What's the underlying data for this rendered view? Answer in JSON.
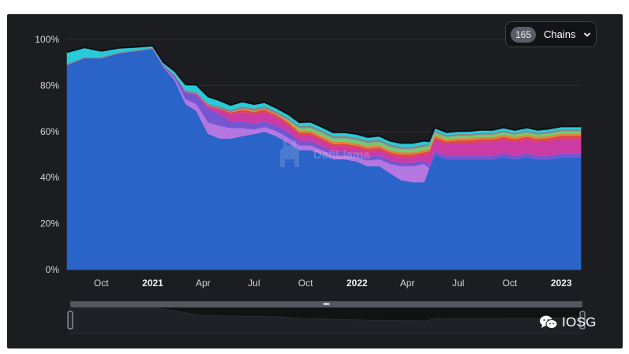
{
  "chains_selector": {
    "count": "165",
    "label": "Chains",
    "icon": "chevron-down-icon"
  },
  "watermark": {
    "text": "DefiLlama",
    "icon": "llama-logo-icon"
  },
  "source_badge": {
    "text": "IOSG",
    "icon": "wechat-icon"
  },
  "colors": {
    "panel_bg": "#1c1d21",
    "ethereum": "#2b64c8",
    "top_edge": "#0e0f11",
    "brush_handle": "#54575e"
  },
  "chart_data": {
    "type": "area",
    "stacked": true,
    "percent": true,
    "title": "",
    "xlabel": "",
    "ylabel": "",
    "ylim": [
      0,
      100
    ],
    "y_ticks": [
      "0%",
      "20%",
      "40%",
      "60%",
      "80%",
      "100%"
    ],
    "x_ticks": [
      {
        "label": "Oct",
        "date": "2020-10-01",
        "bold": false
      },
      {
        "label": "2021",
        "date": "2021-01-01",
        "bold": true
      },
      {
        "label": "Apr",
        "date": "2021-04-01",
        "bold": false
      },
      {
        "label": "Jul",
        "date": "2021-07-01",
        "bold": false
      },
      {
        "label": "Oct",
        "date": "2021-10-01",
        "bold": false
      },
      {
        "label": "2022",
        "date": "2022-01-01",
        "bold": true
      },
      {
        "label": "Apr",
        "date": "2022-04-01",
        "bold": false
      },
      {
        "label": "Jul",
        "date": "2022-07-01",
        "bold": false
      },
      {
        "label": "Oct",
        "date": "2022-10-01",
        "bold": false
      },
      {
        "label": "2023",
        "date": "2023-01-01",
        "bold": true
      }
    ],
    "x_range": [
      "2020-08-01",
      "2023-02-05"
    ],
    "grid": true,
    "legend": "none",
    "x": [
      "2020-08-01",
      "2020-09-01",
      "2020-10-01",
      "2020-11-01",
      "2020-12-01",
      "2021-01-01",
      "2021-01-20",
      "2021-02-10",
      "2021-03-01",
      "2021-03-20",
      "2021-04-10",
      "2021-05-01",
      "2021-05-20",
      "2021-06-10",
      "2021-07-01",
      "2021-07-20",
      "2021-08-10",
      "2021-09-01",
      "2021-09-20",
      "2021-10-10",
      "2021-11-01",
      "2021-11-20",
      "2021-12-10",
      "2022-01-01",
      "2022-01-20",
      "2022-02-10",
      "2022-03-01",
      "2022-03-20",
      "2022-04-10",
      "2022-05-01",
      "2022-05-10",
      "2022-05-20",
      "2022-06-10",
      "2022-07-01",
      "2022-07-20",
      "2022-08-10",
      "2022-09-01",
      "2022-09-20",
      "2022-10-10",
      "2022-11-01",
      "2022-11-20",
      "2022-12-10",
      "2023-01-01",
      "2023-01-20",
      "2023-02-05"
    ],
    "series": [
      {
        "color": "#2b64c8",
        "values": [
          89,
          92,
          92,
          94,
          95,
          96,
          88,
          82,
          72,
          69,
          59,
          57,
          57,
          58,
          59,
          60,
          58,
          55,
          52,
          52,
          50,
          48,
          48,
          47,
          45,
          45,
          42,
          39,
          38,
          38,
          44,
          50,
          48,
          48,
          48,
          48,
          48,
          49,
          48,
          49,
          48,
          48,
          49,
          49,
          49
        ]
      },
      {
        "color": "#c07ff0",
        "values": [
          0,
          0,
          0,
          0,
          0,
          0,
          0.3,
          1,
          2,
          3,
          5,
          5.5,
          4.5,
          3.5,
          2,
          2,
          2.2,
          2.2,
          2,
          2,
          1.8,
          1.5,
          1.6,
          1.8,
          2.5,
          3,
          4,
          6,
          7,
          8,
          0,
          0,
          0,
          0,
          0,
          0,
          0,
          0,
          0,
          0,
          0,
          0,
          0,
          0,
          0
        ]
      },
      {
        "color": "#7c5be0",
        "values": [
          0,
          0,
          0,
          0,
          0,
          0,
          0.5,
          1,
          3,
          4,
          6,
          5,
          3,
          3,
          2.5,
          2.5,
          2.5,
          2.5,
          2,
          2,
          1.6,
          1.6,
          1.6,
          1.6,
          1.6,
          1.6,
          1.5,
          1.5,
          1.5,
          1.5,
          1.5,
          1.5,
          1.5,
          1.5,
          1.5,
          1.5,
          1.5,
          1.5,
          1.5,
          1.5,
          1.5,
          1.5,
          1.5,
          1.5,
          1.5
        ]
      },
      {
        "color": "#d93fb0",
        "values": [
          0,
          0,
          0,
          0,
          0,
          0,
          0,
          0,
          0.2,
          0.5,
          1,
          2,
          3,
          4,
          4,
          4,
          3.5,
          3,
          2.5,
          2.5,
          2.5,
          2.5,
          2.5,
          2.5,
          2.5,
          2.5,
          2.5,
          2.5,
          2.5,
          2.5,
          5,
          5,
          5,
          5.5,
          5.5,
          6,
          6,
          6,
          6,
          6,
          6,
          6.5,
          6.5,
          6.5,
          6.5
        ]
      },
      {
        "color": "#e94a55",
        "values": [
          0,
          0,
          0,
          0,
          0,
          0,
          0,
          0,
          0,
          0,
          0.2,
          0.5,
          0.8,
          1,
          1,
          1,
          1,
          1,
          1,
          1,
          1,
          1,
          1,
          1,
          1,
          1,
          1,
          1,
          1,
          1,
          1,
          1,
          1.2,
          1.2,
          1.2,
          1.2,
          1.2,
          1.2,
          1.2,
          1.2,
          1.2,
          1.2,
          1.2,
          1.2,
          1.2
        ]
      },
      {
        "color": "#f08a3c",
        "values": [
          0,
          0,
          0,
          0,
          0,
          0,
          0,
          0,
          0,
          0,
          0,
          0,
          0.2,
          0.5,
          0.6,
          0.6,
          0.6,
          0.8,
          1,
          1,
          1,
          1,
          1,
          1,
          1,
          1,
          1,
          1,
          1,
          1,
          1,
          1,
          1,
          1,
          1,
          1,
          1,
          1,
          1,
          1,
          1,
          1,
          1,
          1,
          1
        ]
      },
      {
        "color": "#7ad67c",
        "values": [
          0,
          0,
          0,
          0,
          0,
          0,
          0,
          0,
          0,
          0,
          0,
          0,
          0,
          0,
          0,
          0,
          0,
          0.4,
          1,
          1.2,
          1.4,
          1.5,
          1.5,
          1.5,
          1.5,
          1.5,
          1.5,
          1.5,
          1.5,
          1.5,
          1.2,
          1.2,
          1,
          1,
          1,
          1,
          1,
          1,
          1,
          1,
          1,
          1,
          1,
          1,
          1
        ]
      },
      {
        "color": "#8a8f96",
        "values": [
          0.5,
          0.5,
          0.5,
          0.5,
          0.5,
          0.5,
          0.5,
          0.6,
          0.7,
          0.8,
          1,
          1,
          1,
          1,
          1,
          1,
          1,
          1,
          1,
          1,
          1,
          1,
          1,
          1,
          1,
          1,
          1,
          1,
          1,
          1,
          0.8,
          0.8,
          0.8,
          0.8,
          0.8,
          0.8,
          0.8,
          0.8,
          0.8,
          0.8,
          0.8,
          0.8,
          0.8,
          0.8,
          0.8
        ]
      },
      {
        "color": "#27d9e8",
        "values": [
          5,
          4,
          2.5,
          1.8,
          1.2,
          0.8,
          0.8,
          1.5,
          2.5,
          3,
          3,
          2.5,
          2,
          2,
          1.8,
          1.6,
          1.5,
          1.5,
          1.5,
          1.5,
          1.5,
          1.5,
          1.5,
          1.5,
          1.5,
          1.5,
          1.5,
          1.5,
          1.5,
          1.5,
          1.2,
          1.2,
          1.2,
          1.2,
          1.2,
          1.2,
          1.2,
          1.2,
          1.2,
          1.2,
          1.2,
          1.2,
          1.2,
          1.2,
          1.2
        ]
      }
    ],
    "overview_brush": {
      "values": [
        95,
        95,
        95,
        96,
        96,
        97,
        92,
        86,
        77,
        72,
        69,
        68,
        67,
        66,
        66,
        65,
        64,
        61,
        58,
        57,
        56,
        54,
        53,
        52,
        51,
        51,
        50,
        49,
        49,
        48,
        55,
        58,
        57,
        57,
        57,
        57,
        57,
        58,
        58,
        58,
        58,
        59,
        59,
        60,
        60
      ]
    }
  }
}
